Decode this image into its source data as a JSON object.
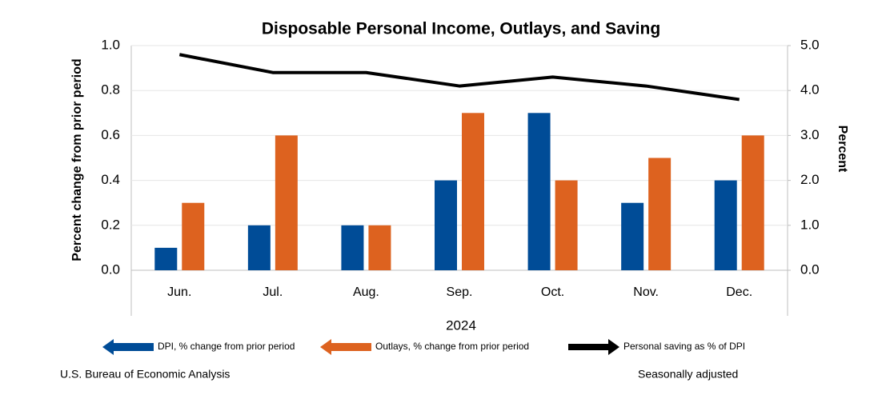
{
  "chart_data": {
    "type": "bar",
    "title": "Disposable Personal Income, Outlays, and Saving",
    "x_label": "2024",
    "y_label": "Percent change from prior period",
    "y2_label": "Percent",
    "categories": [
      "Jun.",
      "Jul.",
      "Aug.",
      "Sep.",
      "Oct.",
      "Nov.",
      "Dec."
    ],
    "series": [
      {
        "name": "DPI, % change from prior period",
        "type": "bar",
        "color": "#004c97",
        "values": [
          0.1,
          0.2,
          0.2,
          0.4,
          0.7,
          0.3,
          0.4
        ]
      },
      {
        "name": "Outlays, % change from prior period",
        "type": "bar",
        "color": "#dd621f",
        "values": [
          0.3,
          0.6,
          0.2,
          0.7,
          0.4,
          0.5,
          0.6
        ]
      },
      {
        "name": "Personal saving as % of DPI",
        "type": "line",
        "axis": "y2",
        "color": "#000000",
        "values": [
          4.8,
          4.4,
          4.4,
          4.1,
          4.3,
          4.1,
          3.8
        ]
      }
    ],
    "ylim": [
      0,
      1
    ],
    "yticks": [
      {
        "value": 0,
        "label": "0.0"
      },
      0.2,
      0.4,
      0.6,
      0.8,
      {
        "value": 1,
        "label": "1.0"
      }
    ],
    "y2lim": [
      0,
      5
    ],
    "y2ticks": [
      {
        "value": 0,
        "label": "0.0"
      },
      {
        "value": 1,
        "label": "1.0"
      },
      {
        "value": 2,
        "label": "2.0"
      },
      {
        "value": 3,
        "label": "3.0"
      },
      {
        "value": 4,
        "label": "4.0"
      },
      {
        "value": 5,
        "label": "5.0"
      }
    ],
    "grid": true,
    "legend": "bottom",
    "source": "U.S. Bureau of Economic Analysis",
    "note": "Seasonally adjusted"
  }
}
